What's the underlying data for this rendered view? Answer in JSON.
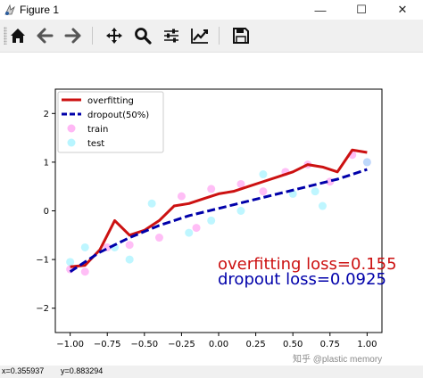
{
  "window": {
    "title": "Figure 1",
    "minimize_glyph": "—",
    "maximize_glyph": "☐",
    "close_glyph": "✕"
  },
  "toolbar": {
    "buttons": [
      {
        "name": "home",
        "icon": "home-icon"
      },
      {
        "name": "back",
        "icon": "arrow-left-icon"
      },
      {
        "name": "forward",
        "icon": "arrow-right-icon"
      },
      {
        "name": "pan",
        "icon": "move-icon"
      },
      {
        "name": "zoom",
        "icon": "search-icon"
      },
      {
        "name": "subplots",
        "icon": "sliders-icon"
      },
      {
        "name": "edit-axes",
        "icon": "line-chart-icon"
      },
      {
        "name": "save",
        "icon": "save-icon"
      }
    ]
  },
  "status": {
    "x_text": "x=0.355937",
    "y_text": "y=0.883294"
  },
  "watermark": "知乎 @plastic memory",
  "colors": {
    "overfitting": "#cc1111",
    "dropout": "#0000aa",
    "train": "#ff88ee",
    "test": "#88eeff",
    "toolbar_bg": "#f0f0f0"
  },
  "chart_data": {
    "type": "line",
    "xlim": [
      -1.1,
      1.1
    ],
    "ylim": [
      -2.5,
      2.5
    ],
    "xticks": [
      -1.0,
      -0.75,
      -0.5,
      -0.25,
      0.0,
      0.25,
      0.5,
      0.75,
      1.0
    ],
    "xtick_labels": [
      "−1.00",
      "−0.75",
      "−0.50",
      "−0.25",
      "0.00",
      "0.25",
      "0.50",
      "0.75",
      "1.00"
    ],
    "yticks": [
      -2,
      -1,
      0,
      1,
      2
    ],
    "ytick_labels": [
      "−2",
      "−1",
      "0",
      "1",
      "2"
    ],
    "grid": false,
    "legend_position": "upper-left",
    "legend_labels": {
      "overfitting": "overfitting",
      "dropout": "dropout(50%)",
      "train": "train",
      "test": "test"
    },
    "annotations": [
      "overfitting loss=0.155",
      "dropout loss=0.0925"
    ],
    "series": [
      {
        "name": "overfitting",
        "x": [
          -1.0,
          -0.9,
          -0.8,
          -0.7,
          -0.6,
          -0.5,
          -0.4,
          -0.3,
          -0.2,
          -0.1,
          0.0,
          0.1,
          0.2,
          0.3,
          0.4,
          0.5,
          0.6,
          0.7,
          0.8,
          0.9,
          1.0
        ],
        "y": [
          -1.15,
          -1.12,
          -0.8,
          -0.2,
          -0.5,
          -0.4,
          -0.2,
          0.1,
          0.15,
          0.25,
          0.35,
          0.4,
          0.5,
          0.6,
          0.7,
          0.8,
          0.95,
          0.9,
          0.8,
          1.25,
          1.2
        ]
      },
      {
        "name": "dropout(50%)",
        "x": [
          -1.0,
          -0.8,
          -0.6,
          -0.4,
          -0.2,
          0.0,
          0.2,
          0.4,
          0.6,
          0.8,
          1.0
        ],
        "y": [
          -1.25,
          -0.85,
          -0.55,
          -0.3,
          -0.1,
          0.05,
          0.2,
          0.35,
          0.5,
          0.65,
          0.85
        ]
      }
    ],
    "scatter": {
      "train": {
        "x": [
          -1.0,
          -0.9,
          -0.75,
          -0.6,
          -0.4,
          -0.25,
          -0.15,
          -0.05,
          0.15,
          0.3,
          0.45,
          0.6,
          0.75,
          0.9,
          1.0
        ],
        "y": [
          -1.2,
          -1.25,
          -0.75,
          -0.7,
          -0.55,
          0.3,
          -0.35,
          0.45,
          0.55,
          0.4,
          0.8,
          0.95,
          0.6,
          1.15,
          1.0
        ]
      },
      "test": {
        "x": [
          -1.0,
          -0.9,
          -0.7,
          -0.6,
          -0.45,
          -0.2,
          -0.05,
          0.15,
          0.3,
          0.5,
          0.65,
          0.7,
          1.0
        ],
        "y": [
          -1.05,
          -0.75,
          -0.75,
          -1.0,
          0.15,
          -0.45,
          -0.2,
          0.0,
          0.75,
          0.35,
          0.4,
          0.1,
          1.0
        ]
      }
    }
  }
}
